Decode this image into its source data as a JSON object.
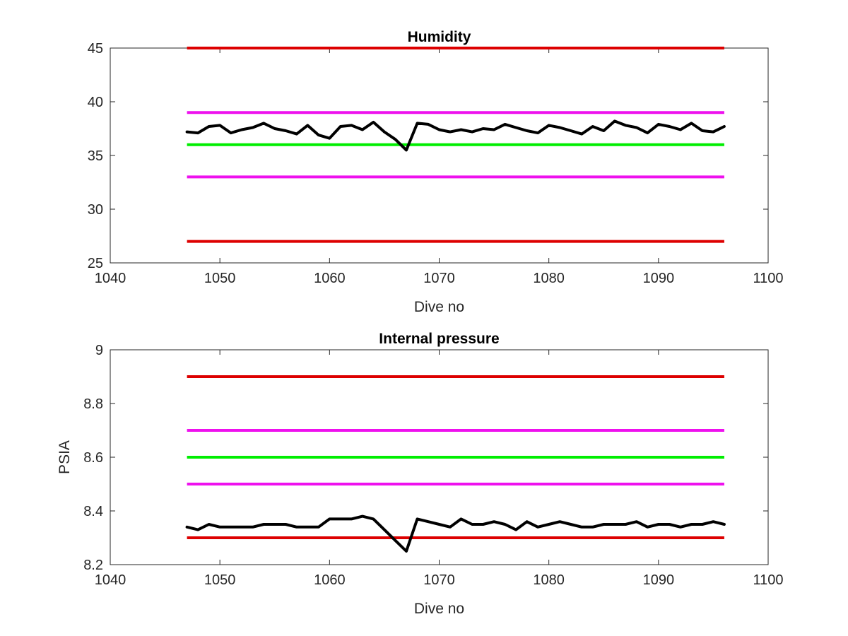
{
  "chart_data": [
    {
      "type": "line",
      "title": "Humidity",
      "xlabel": "Dive no",
      "ylabel": "",
      "xlim": [
        1040,
        1100
      ],
      "ylim": [
        25,
        45
      ],
      "xticks": [
        1040,
        1050,
        1060,
        1070,
        1080,
        1090,
        1100
      ],
      "yticks": [
        25,
        30,
        35,
        40,
        45
      ],
      "grid": false,
      "reference_lines": [
        {
          "y": 45,
          "x": [
            1047,
            1096
          ],
          "color": "#dd0000"
        },
        {
          "y": 39,
          "x": [
            1047,
            1096
          ],
          "color": "#ee11ee"
        },
        {
          "y": 36,
          "x": [
            1047,
            1096
          ],
          "color": "#00ee00"
        },
        {
          "y": 33,
          "x": [
            1047,
            1096
          ],
          "color": "#ee11ee"
        },
        {
          "y": 27,
          "x": [
            1047,
            1096
          ],
          "color": "#dd0000"
        }
      ],
      "series": [
        {
          "color": "#000000",
          "x": [
            1047,
            1048,
            1049,
            1050,
            1051,
            1052,
            1053,
            1054,
            1055,
            1056,
            1057,
            1058,
            1059,
            1060,
            1061,
            1062,
            1063,
            1064,
            1065,
            1066,
            1067,
            1068,
            1069,
            1070,
            1071,
            1072,
            1073,
            1074,
            1075,
            1076,
            1077,
            1078,
            1079,
            1080,
            1081,
            1082,
            1083,
            1084,
            1085,
            1086,
            1087,
            1088,
            1089,
            1090,
            1091,
            1092,
            1093,
            1094,
            1095,
            1096
          ],
          "y": [
            37.2,
            37.1,
            37.7,
            37.8,
            37.1,
            37.4,
            37.6,
            38.0,
            37.5,
            37.3,
            37.0,
            37.8,
            36.9,
            36.6,
            37.7,
            37.8,
            37.4,
            38.1,
            37.2,
            36.5,
            35.5,
            38.0,
            37.9,
            37.4,
            37.2,
            37.4,
            37.2,
            37.5,
            37.4,
            37.9,
            37.6,
            37.3,
            37.1,
            37.8,
            37.6,
            37.3,
            37.0,
            37.7,
            37.3,
            38.2,
            37.8,
            37.6,
            37.1,
            37.9,
            37.7,
            37.4,
            38.0,
            37.3,
            37.2,
            37.7
          ]
        }
      ]
    },
    {
      "type": "line",
      "title": "Internal pressure",
      "xlabel": "Dive no",
      "ylabel": "PSIA",
      "xlim": [
        1040,
        1100
      ],
      "ylim": [
        8.2,
        9.0
      ],
      "xticks": [
        1040,
        1050,
        1060,
        1070,
        1080,
        1090,
        1100
      ],
      "yticks": [
        8.2,
        8.4,
        8.6,
        8.8,
        9.0
      ],
      "yticklabels": [
        "8.2",
        "8.4",
        "8.6",
        "8.8",
        "9"
      ],
      "grid": false,
      "reference_lines": [
        {
          "y": 8.9,
          "x": [
            1047,
            1096
          ],
          "color": "#dd0000"
        },
        {
          "y": 8.7,
          "x": [
            1047,
            1096
          ],
          "color": "#ee11ee"
        },
        {
          "y": 8.6,
          "x": [
            1047,
            1096
          ],
          "color": "#00ee00"
        },
        {
          "y": 8.5,
          "x": [
            1047,
            1096
          ],
          "color": "#ee11ee"
        },
        {
          "y": 8.3,
          "x": [
            1047,
            1096
          ],
          "color": "#dd0000"
        }
      ],
      "series": [
        {
          "color": "#000000",
          "x": [
            1047,
            1048,
            1049,
            1050,
            1051,
            1052,
            1053,
            1054,
            1055,
            1056,
            1057,
            1058,
            1059,
            1060,
            1061,
            1062,
            1063,
            1064,
            1065,
            1066,
            1067,
            1068,
            1069,
            1070,
            1071,
            1072,
            1073,
            1074,
            1075,
            1076,
            1077,
            1078,
            1079,
            1080,
            1081,
            1082,
            1083,
            1084,
            1085,
            1086,
            1087,
            1088,
            1089,
            1090,
            1091,
            1092,
            1093,
            1094,
            1095,
            1096
          ],
          "y": [
            8.34,
            8.33,
            8.35,
            8.34,
            8.34,
            8.34,
            8.34,
            8.35,
            8.35,
            8.35,
            8.34,
            8.34,
            8.34,
            8.37,
            8.37,
            8.37,
            8.38,
            8.37,
            8.33,
            8.29,
            8.25,
            8.37,
            8.36,
            8.35,
            8.34,
            8.37,
            8.35,
            8.35,
            8.36,
            8.35,
            8.33,
            8.36,
            8.34,
            8.35,
            8.36,
            8.35,
            8.34,
            8.34,
            8.35,
            8.35,
            8.35,
            8.36,
            8.34,
            8.35,
            8.35,
            8.34,
            8.35,
            8.35,
            8.36,
            8.35
          ]
        }
      ]
    }
  ]
}
